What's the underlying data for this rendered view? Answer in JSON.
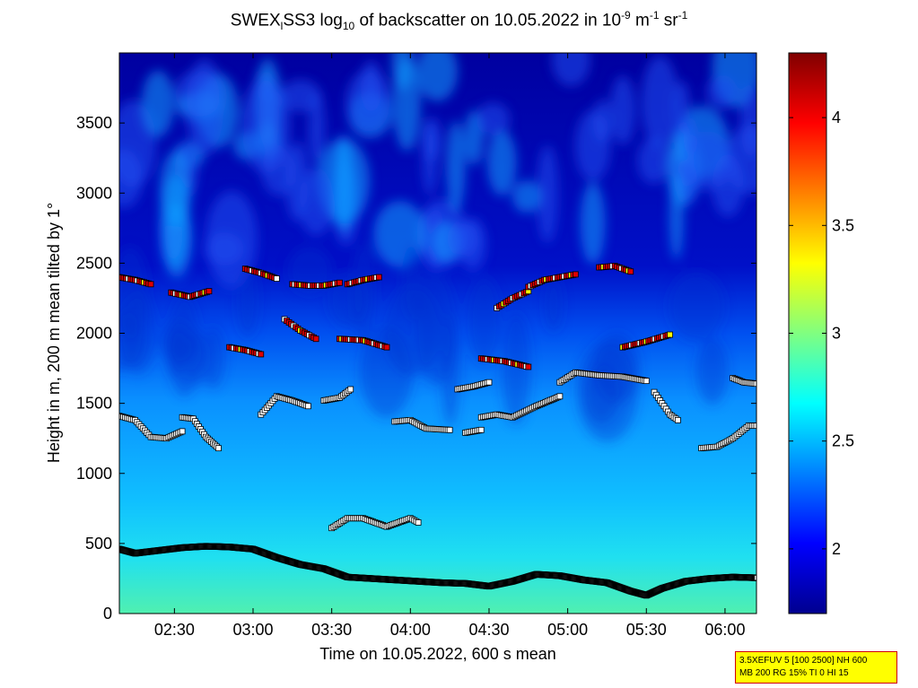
{
  "title": {
    "prefix": "SWEX",
    "sub1": "l",
    "middle": "SS3 log",
    "sub2": "10",
    "rest": " of backscatter on 10.05.2022 in 10",
    "sup1": "-9",
    "unit1": " m",
    "sup2": "-1",
    "unit2": " sr",
    "sup3": "-1"
  },
  "chart_data": {
    "type": "heatmap",
    "xlabel": "Time on 10.05.2022, 600 s mean",
    "ylabel": "Height in m, 200 m mean tilted by 1°",
    "x_range_hours": [
      2.15,
      6.2
    ],
    "xticks": [
      "02:30",
      "03:00",
      "03:30",
      "04:00",
      "04:30",
      "05:00",
      "05:30",
      "06:00"
    ],
    "xtick_hours": [
      2.5,
      3.0,
      3.5,
      4.0,
      4.5,
      5.0,
      5.5,
      6.0
    ],
    "ylim": [
      0,
      4000
    ],
    "yticks": [
      0,
      500,
      1000,
      1500,
      2000,
      2500,
      3000,
      3500
    ],
    "colorbar": {
      "range": [
        1.7,
        4.3
      ],
      "ticks": [
        "2",
        "2.5",
        "3",
        "3.5",
        "4"
      ],
      "tick_values": [
        2,
        2.5,
        3,
        3.5,
        4
      ]
    },
    "mixing_layer_height": {
      "hours": [
        2.15,
        2.25,
        2.4,
        2.55,
        2.7,
        2.85,
        3.0,
        3.15,
        3.3,
        3.45,
        3.6,
        3.75,
        3.9,
        4.05,
        4.2,
        4.35,
        4.5,
        4.65,
        4.8,
        4.95,
        5.1,
        5.25,
        5.4,
        5.5,
        5.6,
        5.75,
        5.9,
        6.05,
        6.2
      ],
      "heights": [
        460,
        430,
        450,
        470,
        480,
        475,
        460,
        400,
        350,
        320,
        260,
        250,
        240,
        230,
        220,
        215,
        195,
        230,
        280,
        270,
        240,
        220,
        160,
        130,
        180,
        230,
        250,
        260,
        255
      ]
    },
    "cloud_base_segments": [
      {
        "hours": [
          2.15,
          2.25,
          2.35,
          2.45,
          2.55
        ],
        "heights": [
          1410,
          1380,
          1260,
          1250,
          1300
        ]
      },
      {
        "hours": [
          2.55,
          2.62,
          2.7,
          2.78
        ],
        "heights": [
          1400,
          1390,
          1260,
          1180
        ]
      },
      {
        "hours": [
          3.05,
          3.15,
          3.25,
          3.35
        ],
        "heights": [
          1420,
          1550,
          1520,
          1480
        ]
      },
      {
        "hours": [
          3.45,
          3.55,
          3.62
        ],
        "heights": [
          1520,
          1540,
          1600
        ]
      },
      {
        "hours": [
          3.9,
          4.0,
          4.1,
          4.25
        ],
        "heights": [
          1370,
          1380,
          1320,
          1310
        ]
      },
      {
        "hours": [
          4.35,
          4.45
        ],
        "heights": [
          1290,
          1310
        ]
      },
      {
        "hours": [
          4.45,
          4.55,
          4.65,
          4.8,
          4.95
        ],
        "heights": [
          1400,
          1420,
          1400,
          1480,
          1550
        ]
      },
      {
        "hours": [
          4.95,
          5.05,
          5.2,
          5.35,
          5.5
        ],
        "heights": [
          1650,
          1720,
          1700,
          1690,
          1660
        ]
      },
      {
        "hours": [
          5.55,
          5.65,
          5.7
        ],
        "heights": [
          1580,
          1420,
          1380
        ]
      },
      {
        "hours": [
          5.85,
          5.95,
          6.05,
          6.15,
          6.2
        ],
        "heights": [
          1180,
          1190,
          1250,
          1340,
          1340
        ]
      },
      {
        "hours": [
          6.05,
          6.12,
          6.2
        ],
        "heights": [
          1680,
          1650,
          1640
        ]
      },
      {
        "hours": [
          3.5,
          3.6,
          3.7,
          3.85,
          4.0,
          4.05
        ],
        "heights": [
          610,
          680,
          680,
          620,
          680,
          650
        ]
      },
      {
        "hours": [
          4.3,
          4.4,
          4.5
        ],
        "heights": [
          1600,
          1620,
          1650
        ]
      }
    ],
    "upper_cloud_segments": [
      {
        "hours": [
          2.15,
          2.25,
          2.35
        ],
        "heights": [
          2400,
          2380,
          2350
        ]
      },
      {
        "hours": [
          2.48,
          2.6,
          2.72
        ],
        "heights": [
          2290,
          2260,
          2300
        ]
      },
      {
        "hours": [
          2.95,
          3.05,
          3.15
        ],
        "heights": [
          2460,
          2430,
          2390
        ]
      },
      {
        "hours": [
          3.25,
          3.35,
          3.45,
          3.55
        ],
        "heights": [
          2350,
          2340,
          2340,
          2360
        ]
      },
      {
        "hours": [
          3.6,
          3.7,
          3.8
        ],
        "heights": [
          2350,
          2380,
          2400
        ]
      },
      {
        "hours": [
          4.55,
          4.65,
          4.75
        ],
        "heights": [
          2180,
          2250,
          2300
        ]
      },
      {
        "hours": [
          4.75,
          4.85,
          4.95,
          5.05
        ],
        "heights": [
          2330,
          2380,
          2400,
          2420
        ]
      },
      {
        "hours": [
          5.2,
          5.3,
          5.4
        ],
        "heights": [
          2470,
          2480,
          2440
        ]
      },
      {
        "hours": [
          3.2,
          3.3,
          3.4
        ],
        "heights": [
          2100,
          2020,
          1960
        ]
      },
      {
        "hours": [
          3.55,
          3.7,
          3.85
        ],
        "heights": [
          1960,
          1950,
          1900
        ]
      },
      {
        "hours": [
          4.45,
          4.6,
          4.75
        ],
        "heights": [
          1820,
          1800,
          1760
        ]
      },
      {
        "hours": [
          5.35,
          5.5,
          5.65
        ],
        "heights": [
          1900,
          1940,
          1990
        ]
      },
      {
        "hours": [
          2.85,
          2.95,
          3.05
        ],
        "heights": [
          1900,
          1880,
          1850
        ]
      }
    ]
  },
  "info_box": {
    "line1": "3.5XEFUV 5 [100 2500] NH 600",
    "line2": "MB 200 RG 15% TI 0 HI 15"
  },
  "colors": {
    "colormap": [
      "#00008f",
      "#0000ff",
      "#0080ff",
      "#00ffff",
      "#80ff80",
      "#ffff00",
      "#ff8000",
      "#ff0000",
      "#800000"
    ],
    "marker_white": "#ffffff",
    "marker_red": "#e00000",
    "marker_yellow": "#ffff00",
    "marker_magenta": "#ff33cc",
    "marker_edge": "#000000",
    "info_box_bg": "#ffff00",
    "info_box_border": "#d00000"
  }
}
